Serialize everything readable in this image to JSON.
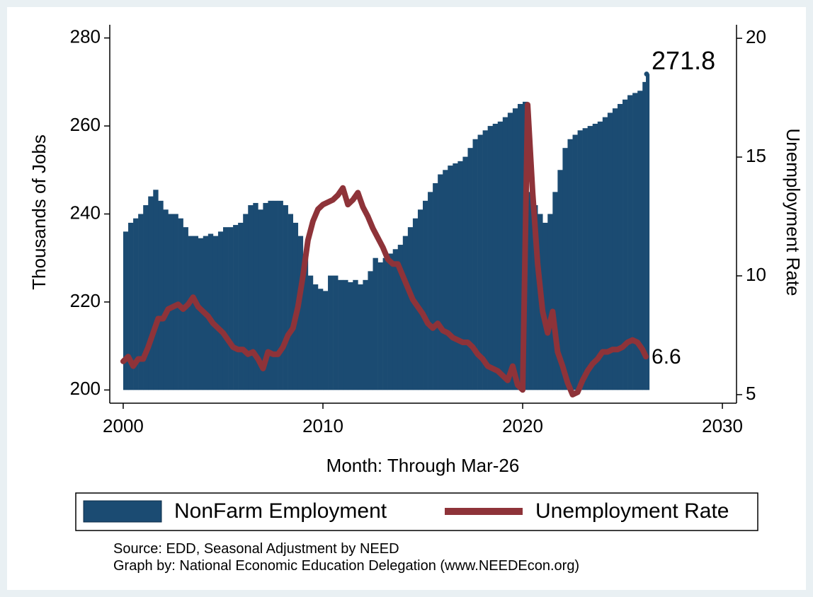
{
  "chart_data": {
    "type": "bar_line",
    "x_label": "Month: Through Mar-26",
    "y_label": "Thousands of Jobs",
    "y2_label": "Unemployment Rate",
    "notes": [
      "Source: EDD, Seasonal Adjustment by NEED",
      "Graph by: National Economic Education Delegation (www.NEEDEcon.org)"
    ],
    "xlim": [
      1999.15,
      2030.53
    ],
    "xticks": [
      2000,
      2010,
      2020,
      2030
    ],
    "ylim": [
      197,
      283
    ],
    "yticks": [
      200,
      220,
      240,
      260,
      280
    ],
    "y2lim": [
      4.64,
      20.57
    ],
    "y2ticks": [
      5,
      10,
      15,
      20
    ],
    "legend": "bottom",
    "x": [
      2000,
      2000.25,
      2000.5,
      2000.75,
      2001,
      2001.25,
      2001.5,
      2001.75,
      2002,
      2002.25,
      2002.5,
      2002.75,
      2003,
      2003.25,
      2003.5,
      2003.75,
      2004,
      2004.25,
      2004.5,
      2004.75,
      2005,
      2005.25,
      2005.5,
      2005.75,
      2006,
      2006.25,
      2006.5,
      2006.75,
      2007,
      2007.25,
      2007.5,
      2007.75,
      2008,
      2008.25,
      2008.5,
      2008.75,
      2009,
      2009.25,
      2009.5,
      2009.75,
      2010,
      2010.25,
      2010.5,
      2010.75,
      2011,
      2011.25,
      2011.5,
      2011.75,
      2012,
      2012.25,
      2012.5,
      2012.75,
      2013,
      2013.25,
      2013.5,
      2013.75,
      2014,
      2014.25,
      2014.5,
      2014.75,
      2015,
      2015.25,
      2015.5,
      2015.75,
      2016,
      2016.25,
      2016.5,
      2016.75,
      2017,
      2017.25,
      2017.5,
      2017.75,
      2018,
      2018.25,
      2018.5,
      2018.75,
      2019,
      2019.25,
      2019.5,
      2019.75,
      2020,
      2020.25,
      2020.5,
      2020.75,
      2021,
      2021.25,
      2021.5,
      2021.75,
      2022,
      2022.25,
      2022.5,
      2022.75,
      2023,
      2023.25,
      2023.5,
      2023.75,
      2024,
      2024.25,
      2024.5,
      2024.75,
      2025,
      2025.25,
      2025.5,
      2025.75,
      2026,
      2026.17
    ],
    "series": [
      {
        "name": "NonFarm Employment",
        "color": "#1b4b72",
        "type": "bar",
        "values": [
          236,
          238,
          239,
          240,
          242,
          244,
          245.5,
          243,
          241,
          240,
          240,
          239,
          237,
          235,
          235,
          234.5,
          235,
          235.5,
          235,
          236,
          237,
          237,
          237.5,
          238,
          240,
          242,
          242.5,
          241,
          242.5,
          243,
          243,
          243,
          242,
          240,
          238,
          235,
          230,
          226,
          224,
          223,
          222.5,
          226,
          226,
          225,
          225,
          224.5,
          225,
          224,
          225,
          227,
          230,
          229,
          230,
          231,
          232,
          233,
          235,
          237,
          239,
          241,
          243,
          245,
          247,
          249,
          250,
          251,
          251.5,
          252,
          253,
          255,
          257,
          258,
          259,
          260,
          260.5,
          261,
          262,
          263,
          264,
          265,
          265.5,
          245,
          242,
          240,
          238,
          240,
          245,
          250,
          255,
          257,
          258,
          259,
          259.5,
          260,
          260.5,
          261,
          262,
          263,
          264,
          265,
          266,
          267,
          267.5,
          268,
          270,
          271.8
        ]
      },
      {
        "name": "Unemployment Rate",
        "color": "#8e3339",
        "type": "line",
        "axis": "y2",
        "values": [
          6.4,
          6.6,
          6.2,
          6.5,
          6.5,
          7.0,
          7.6,
          8.2,
          8.2,
          8.6,
          8.7,
          8.8,
          8.6,
          8.8,
          9.1,
          8.7,
          8.5,
          8.3,
          8.0,
          7.8,
          7.6,
          7.3,
          7.0,
          6.9,
          6.9,
          6.7,
          6.8,
          6.5,
          6.1,
          6.8,
          6.7,
          6.7,
          7.0,
          7.5,
          7.8,
          8.7,
          10.0,
          11.5,
          12.3,
          12.8,
          13.0,
          13.1,
          13.2,
          13.4,
          13.7,
          13.0,
          13.2,
          13.5,
          12.9,
          12.5,
          12.0,
          11.6,
          11.2,
          10.7,
          10.5,
          10.5,
          10.0,
          9.5,
          9.0,
          8.7,
          8.4,
          8.0,
          7.8,
          8.0,
          7.7,
          7.6,
          7.4,
          7.3,
          7.2,
          7.2,
          7.0,
          6.7,
          6.5,
          6.2,
          6.1,
          6.0,
          5.8,
          5.6,
          6.2,
          5.4,
          5.2,
          17.2,
          13.5,
          10.5,
          8.5,
          7.6,
          8.5,
          6.8,
          6.2,
          5.5,
          5.0,
          5.1,
          5.6,
          6.0,
          6.3,
          6.5,
          6.8,
          6.8,
          6.9,
          6.9,
          7.0,
          7.2,
          7.3,
          7.2,
          6.9,
          6.6
        ]
      }
    ]
  }
}
